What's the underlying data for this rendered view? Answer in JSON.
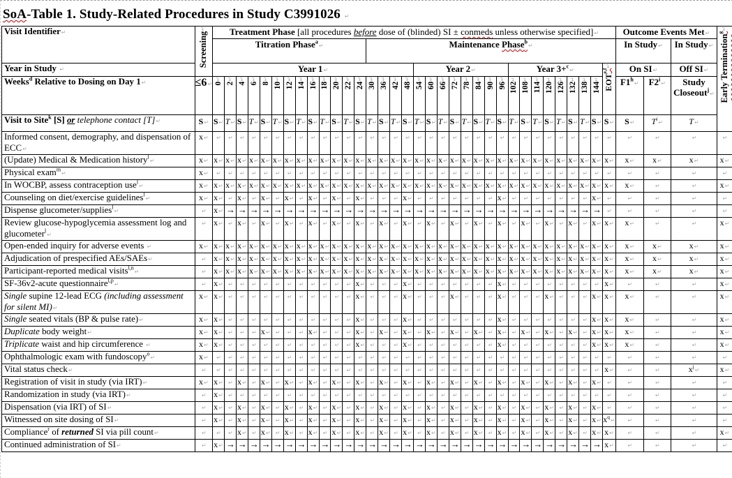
{
  "title": "~SoA~-Table 1.  Study-Related Procedures in Study C3991026 ",
  "header": {
    "visit_identifier": "Visit Identifier",
    "screening": "Screening",
    "treatment_phase": "**Treatment Phase** [all procedures _*before*_ dose of (blinded) SI ± ~conmeds~ unless otherwise specified]",
    "titration_phase": "Titration Phase^{a}",
    "maintenance_phase": "Maintenance ~Phase^{b}~",
    "outcome_events": "Outcome Events Met",
    "in_study_on": "In Study",
    "in_study_off": "In Study",
    "year_in_study": "Year in Study ",
    "years": [
      "Year 1",
      "Year 2",
      "Year 3+^{c}"
    ],
    "on_si": "On SI",
    "off_si": "Off SI",
    "weeks_label": "Weeks^{d} Relative to Dosing on Day 1",
    "screening_weeks": "≤6",
    "eot": "~EOT^{e,f}~",
    "f1": "F1^{h}",
    "f2": "F2^{i}",
    "study_closeout": "Study Closeout^{j}",
    "early_termination": "~Early Termination^{g}~",
    "visit_type_label": "**Visit to Site^{k} [S]** _%%or%%_ *telephone contact [T]*"
  },
  "weeks": [
    "0",
    "2",
    "4",
    "6",
    "8",
    "10",
    "12",
    "14",
    "16",
    "18",
    "20",
    "22",
    "24",
    "30",
    "36",
    "42",
    "48",
    "54",
    "60",
    "66",
    "72",
    "78",
    "84",
    "90",
    "96",
    "102",
    "108",
    "114",
    "120",
    "126",
    "132",
    "138",
    "144"
  ],
  "week_visit_types": [
    "S",
    "T",
    "S",
    "T",
    "S",
    "T",
    "S",
    "T",
    "S",
    "T",
    "S",
    "T",
    "S",
    "T",
    "S",
    "T",
    "S",
    "T",
    "S",
    "T",
    "S",
    "T",
    "S",
    "T",
    "S",
    "T",
    "S",
    "T",
    "S",
    "T",
    "S",
    "T",
    "S"
  ],
  "special_visit_types": {
    "screening": "S",
    "eot": "S",
    "f1": "S",
    "f2": "*T*^{i}",
    "study_closeout": "*T*"
  },
  "procedures": [
    {
      "label": "Informed consent, demography, and dispensation of ECC",
      "marks": [
        "x",
        "",
        "",
        "",
        "",
        "",
        "",
        "",
        "",
        "",
        "",
        "",
        "",
        "",
        "",
        "",
        "",
        "",
        "",
        "",
        "",
        "",
        "",
        "",
        "",
        "",
        "",
        "",
        "",
        "",
        "",
        "",
        "",
        "",
        "",
        "",
        "",
        "",
        ""
      ]
    },
    {
      "label": "(Update) Medical & Medication history^{l}",
      "marks": [
        "x",
        "x",
        "x",
        "x",
        "x",
        "x",
        "x",
        "x",
        "x",
        "x",
        "x",
        "x",
        "x",
        "x",
        "x",
        "x",
        "x",
        "x",
        "x",
        "x",
        "x",
        "x",
        "x",
        "x",
        "x",
        "x",
        "x",
        "x",
        "x",
        "x",
        "x",
        "x",
        "x",
        "x",
        "x",
        "x",
        "x",
        "x",
        "x"
      ]
    },
    {
      "label": "Physical exam^{m}",
      "marks": [
        "x",
        "",
        "",
        "",
        "",
        "",
        "",
        "",
        "",
        "",
        "",
        "",
        "",
        "",
        "",
        "",
        "",
        "",
        "",
        "",
        "",
        "",
        "",
        "",
        "",
        "",
        "",
        "",
        "",
        "",
        "",
        "",
        "",
        "",
        "",
        "",
        "",
        "",
        ""
      ]
    },
    {
      "label": "In WOCBP, assess contraception use^{l}",
      "marks": [
        "x",
        "x",
        "x",
        "x",
        "x",
        "x",
        "x",
        "x",
        "x",
        "x",
        "x",
        "x",
        "x",
        "x",
        "x",
        "x",
        "x",
        "x",
        "x",
        "x",
        "x",
        "x",
        "x",
        "x",
        "x",
        "x",
        "x",
        "x",
        "x",
        "x",
        "x",
        "x",
        "x",
        "x",
        "x",
        "x",
        "",
        "",
        "x"
      ]
    },
    {
      "label": "Counseling on diet/exercise guidelines^{l}",
      "marks": [
        "x",
        "x",
        "",
        "x",
        "",
        "x",
        "",
        "x",
        "",
        "x",
        "",
        "x",
        "",
        "x",
        "",
        "",
        "",
        "x",
        "",
        "",
        "",
        "",
        "",
        "",
        "",
        "x",
        "",
        "",
        "",
        "",
        "",
        "",
        "",
        "x",
        "",
        "",
        "",
        "",
        ""
      ]
    },
    {
      "label": "Dispense glucometer/supplies^{l}",
      "marks": [
        "",
        "x",
        "→",
        "→",
        "→",
        "→",
        "→",
        "→",
        "→",
        "→",
        "→",
        "→",
        "→",
        "→",
        "→",
        "→",
        "→",
        "→",
        "→",
        "→",
        "→",
        "→",
        "→",
        "→",
        "→",
        "→",
        "→",
        "→",
        "→",
        "→",
        "→",
        "→",
        "→",
        "→",
        "",
        "",
        "",
        "",
        ""
      ]
    },
    {
      "label": "Review glucose-hypoglycemia assessment log and glucometer^{l}",
      "marks": [
        "",
        "x",
        "",
        "x",
        "",
        "x",
        "",
        "x",
        "",
        "x",
        "",
        "x",
        "",
        "x",
        "",
        "x",
        "",
        "x",
        "",
        "x",
        "",
        "x",
        "",
        "x",
        "",
        "x",
        "",
        "x",
        "",
        "x",
        "",
        "x",
        "",
        "x",
        "x",
        "x",
        "",
        "",
        "x"
      ]
    },
    {
      "label": "Open-ended inquiry for adverse events ",
      "marks": [
        "x",
        "x",
        "x",
        "x",
        "x",
        "x",
        "x",
        "x",
        "x",
        "x",
        "x",
        "x",
        "x",
        "x",
        "x",
        "x",
        "x",
        "x",
        "x",
        "x",
        "x",
        "x",
        "x",
        "x",
        "x",
        "x",
        "x",
        "x",
        "x",
        "x",
        "x",
        "x",
        "x",
        "x",
        "x",
        "x",
        "x",
        "x",
        "x"
      ]
    },
    {
      "label": "Adjudication of prespecified AEs/SAEs",
      "marks": [
        "",
        "x",
        "x",
        "x",
        "x",
        "x",
        "x",
        "x",
        "x",
        "x",
        "x",
        "x",
        "x",
        "x",
        "x",
        "x",
        "x",
        "x",
        "x",
        "x",
        "x",
        "x",
        "x",
        "x",
        "x",
        "x",
        "x",
        "x",
        "x",
        "x",
        "x",
        "x",
        "x",
        "x",
        "x",
        "x",
        "x",
        "x",
        "x"
      ]
    },
    {
      "label": "Participant-reported medical visits^{l,n}",
      "marks": [
        "",
        "x",
        "x",
        "x",
        "x",
        "x",
        "x",
        "x",
        "x",
        "x",
        "x",
        "x",
        "x",
        "x",
        "x",
        "x",
        "x",
        "x",
        "x",
        "x",
        "x",
        "x",
        "x",
        "x",
        "x",
        "x",
        "x",
        "x",
        "x",
        "x",
        "x",
        "x",
        "x",
        "x",
        "x",
        "x",
        "x",
        "x",
        "x"
      ]
    },
    {
      "label": "SF-36v2-acute questionnaire^{l,p}",
      "marks": [
        "",
        "x",
        "",
        "",
        "",
        "",
        "",
        "",
        "",
        "",
        "",
        "",
        "",
        "x",
        "",
        "",
        "",
        "x",
        "",
        "",
        "",
        "",
        "",
        "",
        "",
        "x",
        "",
        "",
        "",
        "",
        "",
        "",
        "",
        "",
        "x",
        "",
        "",
        "",
        "x"
      ]
    },
    {
      "label": "*Single* supine 12-lead ECG *(including assessment for silent MI)*",
      "marks": [
        "x",
        "x",
        "",
        "",
        "",
        "",
        "",
        "",
        "",
        "",
        "",
        "",
        "",
        "x",
        "",
        "",
        "",
        "x",
        "",
        "",
        "",
        "x",
        "",
        "",
        "",
        "x",
        "",
        "",
        "",
        "x",
        "",
        "",
        "",
        "x",
        "x",
        "x",
        "",
        "",
        "x"
      ]
    },
    {
      "label": "*Single* seated vitals (BP & pulse rate)",
      "marks": [
        "x",
        "x",
        "",
        "",
        "",
        "",
        "",
        "",
        "",
        "",
        "",
        "",
        "",
        "x",
        "",
        "",
        "",
        "x",
        "",
        "",
        "",
        "",
        "",
        "",
        "",
        "x",
        "",
        "",
        "",
        "",
        "",
        "",
        "",
        "x",
        "x",
        "x",
        "",
        "",
        "x"
      ]
    },
    {
      "label": "*Duplicate* body weight",
      "marks": [
        "x",
        "x",
        "",
        "",
        "",
        "x",
        "",
        "",
        "",
        "x",
        "",
        "",
        "",
        "x",
        "",
        "x",
        "",
        "x",
        "",
        "x",
        "",
        "x",
        "",
        "x",
        "",
        "x",
        "",
        "x",
        "",
        "x",
        "",
        "x",
        "",
        "x",
        "x",
        "x",
        "",
        "",
        "x"
      ]
    },
    {
      "label": "*Triplicate* waist and hip circumference ",
      "marks": [
        "x",
        "x",
        "",
        "",
        "",
        "",
        "",
        "",
        "",
        "",
        "",
        "",
        "",
        "x",
        "",
        "",
        "",
        "x",
        "",
        "",
        "",
        "",
        "",
        "",
        "",
        "x",
        "",
        "",
        "",
        "",
        "",
        "",
        "",
        "x",
        "x",
        "x",
        "",
        "",
        "x"
      ]
    },
    {
      "label": "Ophthalmologic exam with fundoscopy^{o}",
      "marks": [
        "x",
        "",
        "",
        "",
        "",
        "",
        "",
        "",
        "",
        "",
        "",
        "",
        "",
        "",
        "",
        "",
        "",
        "",
        "",
        "",
        "",
        "",
        "",
        "",
        "",
        "",
        "",
        "",
        "",
        "",
        "",
        "",
        "",
        "",
        "",
        "",
        "",
        "",
        ""
      ]
    },
    {
      "label": "Vital status check",
      "marks": [
        "",
        "",
        "",
        "",
        "",
        "",
        "",
        "",
        "",
        "",
        "",
        "",
        "",
        "",
        "",
        "",
        "",
        "",
        "",
        "",
        "",
        "",
        "",
        "",
        "",
        "",
        "",
        "",
        "",
        "",
        "",
        "",
        "",
        "",
        "x",
        "",
        "",
        "x^{j}",
        "x"
      ]
    },
    {
      "label": "Registration of visit in study (via IRT)",
      "marks": [
        "x",
        "x",
        "",
        "x",
        "",
        "x",
        "",
        "x",
        "",
        "x",
        "",
        "x",
        "",
        "x",
        "",
        "x",
        "",
        "x",
        "",
        "x",
        "",
        "x",
        "",
        "x",
        "",
        "x",
        "",
        "x",
        "",
        "x",
        "",
        "x",
        "",
        "x",
        "",
        "",
        "",
        "",
        ""
      ]
    },
    {
      "label": "Randomization in study (via IRT)",
      "marks": [
        "",
        "x",
        "",
        "",
        "",
        "",
        "",
        "",
        "",
        "",
        "",
        "",
        "",
        "",
        "",
        "",
        "",
        "",
        "",
        "",
        "",
        "",
        "",
        "",
        "",
        "",
        "",
        "",
        "",
        "",
        "",
        "",
        "",
        "",
        "",
        "",
        "",
        "",
        ""
      ]
    },
    {
      "label": "Dispensation (via IRT) of SI",
      "marks": [
        "",
        "x",
        "",
        "x",
        "",
        "x",
        "",
        "x",
        "",
        "x",
        "",
        "x",
        "",
        "x",
        "",
        "x",
        "",
        "x",
        "",
        "x",
        "",
        "x",
        "",
        "x",
        "",
        "x",
        "",
        "x",
        "",
        "x",
        "",
        "x",
        "",
        "x",
        "",
        "",
        "",
        "",
        ""
      ]
    },
    {
      "label": "Witnessed on site dosing of SI",
      "marks": [
        "",
        "x",
        "",
        "x",
        "",
        "x",
        "",
        "x",
        "",
        "x",
        "",
        "x",
        "",
        "x",
        "",
        "x",
        "",
        "x",
        "",
        "x",
        "",
        "x",
        "",
        "x",
        "",
        "x",
        "",
        "x",
        "",
        "x",
        "",
        "x",
        "",
        "x",
        "x^{q}",
        "",
        "",
        "",
        ""
      ]
    },
    {
      "label": "Compliance^{r} of %%returned%% SI via pill count",
      "marks": [
        "",
        "",
        "",
        "x",
        "",
        "x",
        "",
        "x",
        "",
        "x",
        "",
        "x",
        "",
        "x",
        "",
        "x",
        "",
        "x",
        "",
        "x",
        "",
        "x",
        "",
        "x",
        "",
        "x",
        "",
        "x",
        "",
        "x",
        "",
        "x",
        "",
        "x",
        "x",
        "",
        "",
        "",
        "x"
      ]
    },
    {
      "label": "Continued administration of SI",
      "marks": [
        "",
        "x",
        "→",
        "→",
        "→",
        "→",
        "→",
        "→",
        "→",
        "→",
        "→",
        "→",
        "→",
        "→",
        "→",
        "→",
        "→",
        "→",
        "→",
        "→",
        "→",
        "→",
        "→",
        "→",
        "→",
        "→",
        "→",
        "→",
        "→",
        "→",
        "→",
        "→",
        "→",
        "→",
        "x",
        "",
        "",
        "",
        ""
      ]
    }
  ]
}
